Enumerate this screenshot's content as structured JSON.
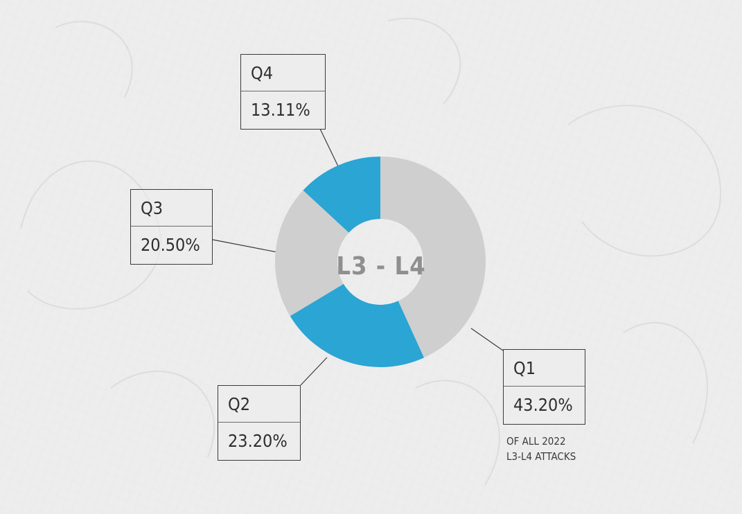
{
  "chart_data": {
    "type": "pie",
    "center_label": "L3 - L4",
    "categories": [
      "Q1",
      "Q2",
      "Q3",
      "Q4"
    ],
    "values": [
      43.2,
      23.2,
      20.5,
      13.11
    ],
    "value_labels": [
      "43.20%",
      "23.20%",
      "20.50%",
      "13.11%"
    ],
    "slice_colors": [
      "#cfcfcf",
      "#2aa5d4",
      "#cfcfcf",
      "#2aa5d4"
    ],
    "donut": true,
    "note": [
      "OF ALL 2022",
      "L3-L4 ATTACKS"
    ]
  }
}
